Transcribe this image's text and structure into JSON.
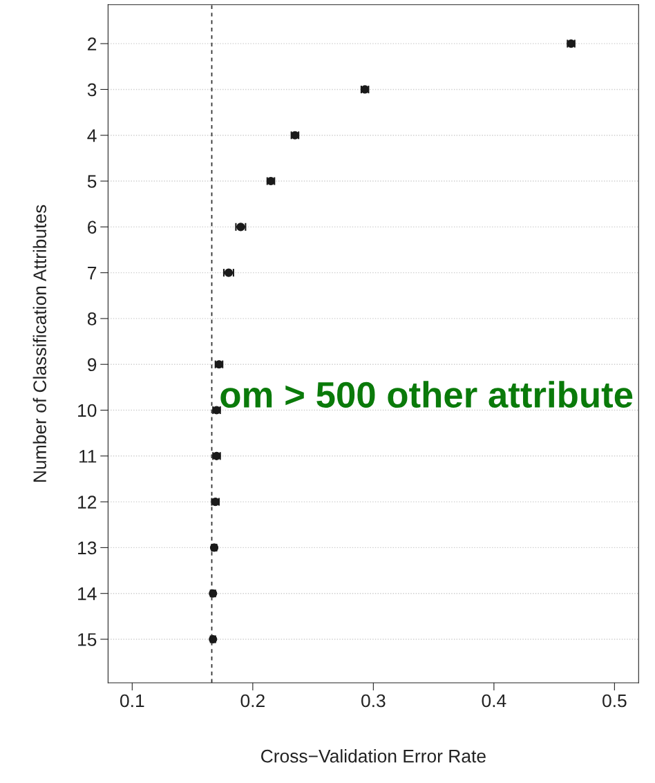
{
  "chart_data": {
    "type": "scatter",
    "orientation": "horizontal",
    "xlabel": "Cross−Validation Error Rate",
    "ylabel": "Number of Classification Attributes",
    "categories": [
      "2",
      "3",
      "4",
      "5",
      "6",
      "7",
      "8",
      "9",
      "10",
      "11",
      "12",
      "13",
      "14",
      "15"
    ],
    "values": [
      0.464,
      0.293,
      0.235,
      0.215,
      0.19,
      0.18,
      null,
      0.172,
      0.17,
      0.17,
      0.169,
      0.168,
      0.167,
      0.167
    ],
    "errors": [
      0.003,
      0.003,
      0.003,
      0.003,
      0.004,
      0.004,
      null,
      0.003,
      0.003,
      0.003,
      0.003,
      0.002,
      0.002,
      0.002
    ],
    "color": "#1a1a1a",
    "marker": "circle",
    "xlim": [
      0.08,
      0.52
    ],
    "xticks": [
      0.1,
      0.2,
      0.3,
      0.4,
      0.5
    ],
    "ref_lines": [
      {
        "axis": "x",
        "value": 0.166,
        "line_style": "dashed",
        "color": "#333333"
      }
    ],
    "grid": "y",
    "annotations": [
      "om > 500 other attribute"
    ]
  }
}
